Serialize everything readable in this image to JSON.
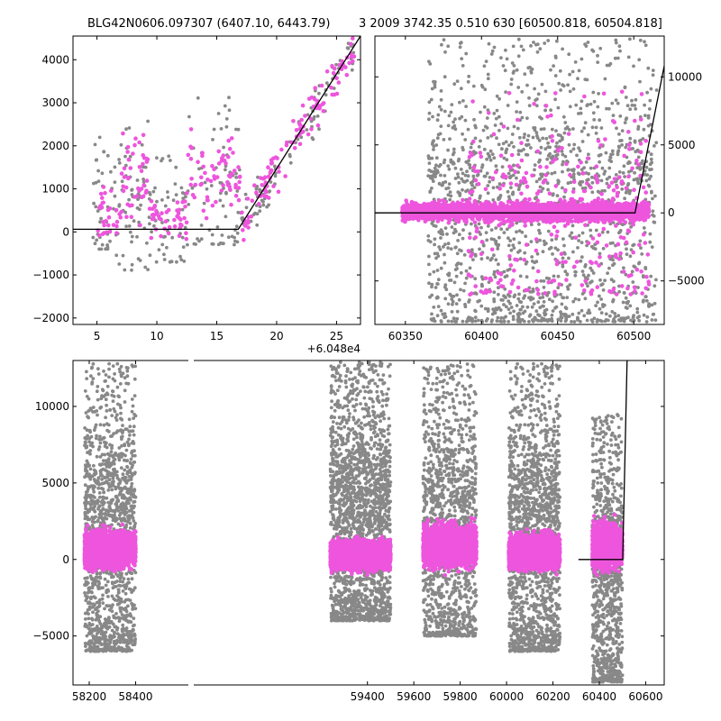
{
  "figure": {
    "title_left": "BLG42N0606.097307 (6407.10, 6443.79)",
    "title_right": "3 2009 3742.35 0.510 630 [60500.818, 60504.818]"
  },
  "colors": {
    "highlight": "#ee55dd",
    "base": "#888888",
    "model": "#000000"
  },
  "chart_data": [
    {
      "type": "scatter",
      "panel": "top-left zoom",
      "x_offset_label": "+6.048e4",
      "xlim": [
        3,
        27
      ],
      "ylim": [
        -2150,
        4550
      ],
      "xticks": [
        5,
        10,
        15,
        20,
        25
      ],
      "xtick_labels": [
        "5",
        "10",
        "15",
        "20",
        "25"
      ],
      "yticks": [
        -2000,
        -1000,
        0,
        1000,
        2000,
        3000,
        4000
      ],
      "ytick_labels": [
        "−2000",
        "−1000",
        "0",
        "1000",
        "2000",
        "3000",
        "4000"
      ],
      "model_line": {
        "x": [
          3,
          16.8,
          27
        ],
        "y": [
          60,
          60,
          4550
        ]
      },
      "series": [
        {
          "color": "gray",
          "clusters": [
            {
              "x": [
                4.5,
                6.5
              ],
              "y": [
                -400,
                2600
              ],
              "n": 45
            },
            {
              "x": [
                6.5,
                9.5
              ],
              "y": [
                -900,
                2800
              ],
              "n": 70
            },
            {
              "x": [
                9.5,
                12.5
              ],
              "y": [
                -700,
                1800
              ],
              "n": 50
            },
            {
              "x": [
                12.5,
                17
              ],
              "y": [
                -300,
                3300
              ],
              "n": 75
            },
            {
              "x": [
                17,
                20
              ],
              "y": [
                0,
                2200
              ],
              "n": 45
            },
            {
              "x": [
                21,
                26.5
              ],
              "y": [
                1000,
                4500
              ],
              "n": 55
            }
          ]
        },
        {
          "color": "magenta",
          "clusters": [
            {
              "x": [
                5,
                7
              ],
              "y": [
                -900,
                1500
              ],
              "n": 30
            },
            {
              "x": [
                7,
                9.5
              ],
              "y": [
                -700,
                3200
              ],
              "n": 45
            },
            {
              "x": [
                9.5,
                12.5
              ],
              "y": [
                -700,
                1200
              ],
              "n": 45
            },
            {
              "x": [
                12.5,
                17
              ],
              "y": [
                -400,
                2800
              ],
              "n": 65
            },
            {
              "x": [
                17,
                21
              ],
              "y": [
                -200,
                2200
              ],
              "n": 50
            },
            {
              "x": [
                21,
                26.5
              ],
              "y": [
                1200,
                4500
              ],
              "n": 60
            }
          ]
        }
      ]
    },
    {
      "type": "scatter",
      "panel": "top-right",
      "xlim": [
        60330,
        60520
      ],
      "ylim": [
        -8200,
        13000
      ],
      "xticks": [
        60350,
        60400,
        60450,
        60500
      ],
      "xtick_labels": [
        "60350",
        "60400",
        "60450",
        "60500"
      ],
      "yticks": [
        -5000,
        0,
        5000,
        10000
      ],
      "ytick_labels": [
        "−5000",
        "0",
        "5000",
        "10000"
      ],
      "yaxis_side": "right",
      "model_line": {
        "x": [
          60330,
          60500.8,
          60520
        ],
        "y": [
          0,
          0,
          10800
        ]
      },
      "series": [
        {
          "color": "gray",
          "clusters": [
            {
              "x": [
                60365,
                60515
              ],
              "y": [
                -8000,
                12800
              ],
              "n": 1600
            }
          ]
        },
        {
          "color": "magenta",
          "clusters": [
            {
              "x": [
                60348,
                60510
              ],
              "y": [
                -1000,
                1200
              ],
              "n": 2500
            },
            {
              "x": [
                60390,
                60510
              ],
              "y": [
                -6000,
                9000
              ],
              "n": 300
            }
          ]
        }
      ]
    },
    {
      "type": "scatter",
      "panel": "bottom full light curve",
      "xlim": [
        58130,
        60680
      ],
      "ylim": [
        -8200,
        13000
      ],
      "xticks": [
        58200,
        58400,
        59400,
        59600,
        59800,
        60000,
        60200,
        60400,
        60600
      ],
      "xtick_labels": [
        "58200",
        "58400",
        "59400",
        "59600",
        "59800",
        "60000",
        "60200",
        "60400",
        "60600"
      ],
      "yticks": [
        -5000,
        0,
        5000,
        10000
      ],
      "ytick_labels": [
        "−5000",
        "0",
        "5000",
        "10000"
      ],
      "model_line": {
        "x": [
          60310,
          60500.8,
          60520
        ],
        "y": [
          0,
          0,
          13000
        ]
      },
      "series": [
        {
          "color": "gray",
          "clusters": [
            {
              "x": [
                58180,
                58400
              ],
              "y": [
                -6000,
                12800
              ],
              "n": 1400
            },
            {
              "x": [
                59240,
                59500
              ],
              "y": [
                -4000,
                12900
              ],
              "n": 2000
            },
            {
              "x": [
                59640,
                59870
              ],
              "y": [
                -5000,
                12800
              ],
              "n": 1300
            },
            {
              "x": [
                60010,
                60230
              ],
              "y": [
                -6000,
                12800
              ],
              "n": 1600
            },
            {
              "x": [
                60370,
                60500
              ],
              "y": [
                -8000,
                9500
              ],
              "n": 1000
            }
          ]
        },
        {
          "color": "magenta",
          "clusters": [
            {
              "x": [
                58180,
                58400
              ],
              "y": [
                -1200,
                2500
              ],
              "n": 2800
            },
            {
              "x": [
                59240,
                59500
              ],
              "y": [
                -1200,
                1800
              ],
              "n": 2800
            },
            {
              "x": [
                59640,
                59870
              ],
              "y": [
                -1200,
                3000
              ],
              "n": 2600
            },
            {
              "x": [
                60010,
                60230
              ],
              "y": [
                -1200,
                2200
              ],
              "n": 2600
            },
            {
              "x": [
                60370,
                60500
              ],
              "y": [
                -1500,
                3200
              ],
              "n": 1400
            }
          ]
        }
      ]
    }
  ]
}
